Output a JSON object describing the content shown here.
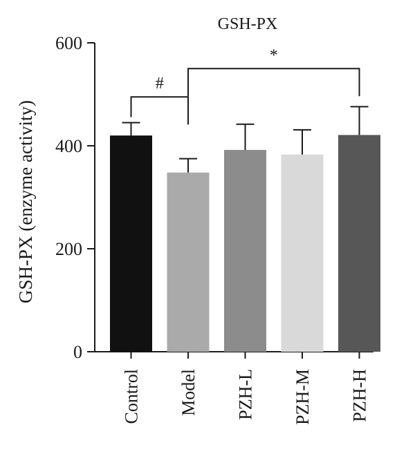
{
  "chart_data": {
    "type": "bar",
    "title": "GSH-PX",
    "xlabel": "",
    "ylabel": "GSH-PX (enzyme activity)",
    "categories": [
      "Control",
      "Model",
      "PZH-L",
      "PZH-M",
      "PZH-H"
    ],
    "values": [
      420,
      348,
      392,
      383,
      421
    ],
    "errors": [
      25,
      27,
      50,
      48,
      55
    ],
    "colors": [
      "#111111",
      "#aaaaaa",
      "#8c8c8c",
      "#d9d9d9",
      "#575757"
    ],
    "ylim": [
      0,
      600
    ],
    "yticks": [
      0,
      200,
      400,
      600
    ],
    "grid": false,
    "legend": "none",
    "annotations": [
      {
        "symbol": "#",
        "from": "Control",
        "to": "Model",
        "level": 495
      },
      {
        "symbol": "*",
        "from": "Model",
        "to": "PZH-H",
        "level": 550
      }
    ]
  }
}
